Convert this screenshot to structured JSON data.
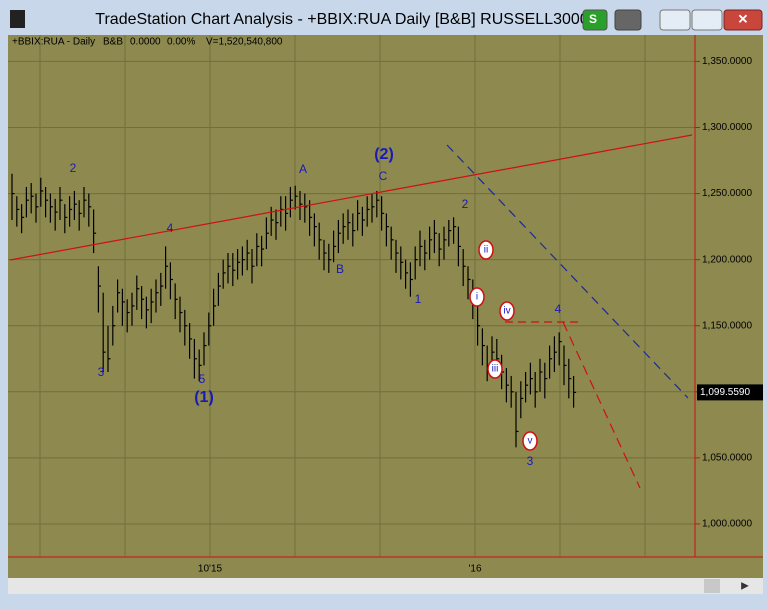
{
  "window": {
    "title": "TradeStation Chart Analysis - +BBIX:RUA Daily [B&B] RUSSELL3000",
    "button": "S"
  },
  "chart_data": {
    "type": "ohlc",
    "info": [
      "+BBIX:RUA - Daily",
      "B&B",
      "0.0000",
      "0.00%",
      "V=1,520,540,800"
    ],
    "x_labels": [
      "10'15",
      "'16"
    ],
    "close": [
      1250,
      1238,
      1232,
      1245,
      1248,
      1240,
      1252,
      1245,
      1240,
      1236,
      1245,
      1232,
      1238,
      1242,
      1235,
      1245,
      1240,
      1220,
      1180,
      1130,
      1125,
      1150,
      1175,
      1168,
      1160,
      1165,
      1178,
      1170,
      1162,
      1168,
      1175,
      1180,
      1195,
      1185,
      1170,
      1160,
      1150,
      1140,
      1125,
      1120,
      1135,
      1150,
      1165,
      1180,
      1190,
      1195,
      1192,
      1198,
      1200,
      1205,
      1195,
      1210,
      1208,
      1220,
      1230,
      1228,
      1238,
      1235,
      1245,
      1248,
      1242,
      1240,
      1232,
      1225,
      1215,
      1205,
      1200,
      1210,
      1220,
      1225,
      1228,
      1222,
      1235,
      1230,
      1238,
      1240,
      1245,
      1235,
      1225,
      1215,
      1205,
      1198,
      1190,
      1185,
      1200,
      1210,
      1205,
      1215,
      1220,
      1208,
      1215,
      1222,
      1225,
      1210,
      1195,
      1185,
      1170,
      1150,
      1135,
      1120,
      1130,
      1125,
      1115,
      1105,
      1100,
      1070,
      1095,
      1105,
      1110,
      1100,
      1115,
      1110,
      1125,
      1130,
      1138,
      1120,
      1110,
      1099.559
    ],
    "high": [
      1265,
      1248,
      1242,
      1255,
      1258,
      1250,
      1262,
      1255,
      1250,
      1246,
      1255,
      1242,
      1248,
      1252,
      1245,
      1255,
      1250,
      1238,
      1195,
      1175,
      1150,
      1165,
      1185,
      1178,
      1170,
      1175,
      1188,
      1180,
      1172,
      1178,
      1185,
      1190,
      1210,
      1198,
      1182,
      1172,
      1162,
      1152,
      1140,
      1132,
      1145,
      1160,
      1178,
      1190,
      1200,
      1205,
      1205,
      1208,
      1210,
      1215,
      1208,
      1220,
      1218,
      1232,
      1240,
      1238,
      1248,
      1248,
      1255,
      1256,
      1252,
      1250,
      1245,
      1235,
      1228,
      1215,
      1212,
      1222,
      1230,
      1235,
      1238,
      1235,
      1245,
      1240,
      1248,
      1250,
      1252,
      1248,
      1235,
      1225,
      1215,
      1210,
      1200,
      1198,
      1210,
      1222,
      1215,
      1225,
      1230,
      1220,
      1225,
      1230,
      1232,
      1225,
      1208,
      1195,
      1185,
      1168,
      1148,
      1135,
      1142,
      1140,
      1128,
      1118,
      1112,
      1100,
      1108,
      1115,
      1122,
      1115,
      1125,
      1122,
      1135,
      1142,
      1145,
      1135,
      1125,
      1112
    ],
    "low": [
      1230,
      1225,
      1220,
      1232,
      1235,
      1228,
      1240,
      1232,
      1228,
      1222,
      1230,
      1220,
      1225,
      1230,
      1222,
      1232,
      1225,
      1205,
      1160,
      1115,
      1115,
      1135,
      1160,
      1150,
      1145,
      1150,
      1162,
      1155,
      1148,
      1152,
      1160,
      1165,
      1178,
      1170,
      1155,
      1145,
      1135,
      1125,
      1110,
      1108,
      1120,
      1135,
      1150,
      1165,
      1178,
      1182,
      1180,
      1185,
      1188,
      1192,
      1182,
      1195,
      1195,
      1208,
      1218,
      1215,
      1225,
      1222,
      1232,
      1238,
      1230,
      1228,
      1218,
      1210,
      1200,
      1192,
      1190,
      1198,
      1205,
      1212,
      1215,
      1210,
      1222,
      1218,
      1225,
      1228,
      1232,
      1222,
      1210,
      1200,
      1190,
      1185,
      1178,
      1172,
      1185,
      1195,
      1192,
      1200,
      1205,
      1195,
      1200,
      1210,
      1212,
      1195,
      1180,
      1170,
      1155,
      1135,
      1120,
      1108,
      1115,
      1112,
      1102,
      1092,
      1088,
      1058,
      1080,
      1092,
      1098,
      1088,
      1100,
      1095,
      1110,
      1115,
      1120,
      1105,
      1095,
      1088
    ],
    "last_label": "1,099.5590",
    "ylim": [
      975,
      1370
    ],
    "yticks": [
      {
        "value": 1000,
        "label": "1,000.0000"
      },
      {
        "value": 1050,
        "label": "1,050.0000"
      },
      {
        "value": 1100,
        "label": "1,100.0000"
      },
      {
        "value": 1150,
        "label": "1,150.0000"
      },
      {
        "value": 1200,
        "label": "1,200.0000"
      },
      {
        "value": 1250,
        "label": "1,250.0000"
      },
      {
        "value": 1300,
        "label": "1,300.0000"
      },
      {
        "value": 1350,
        "label": "1,350.0000"
      }
    ],
    "annotations": [
      "2",
      "3",
      "4",
      "5",
      "(1)",
      "A",
      "B",
      "(2)",
      "C",
      "2",
      "1",
      "ii",
      "i",
      "iv",
      "iii",
      "v",
      "3",
      "4"
    ],
    "color": "#000000",
    "grid": true
  }
}
